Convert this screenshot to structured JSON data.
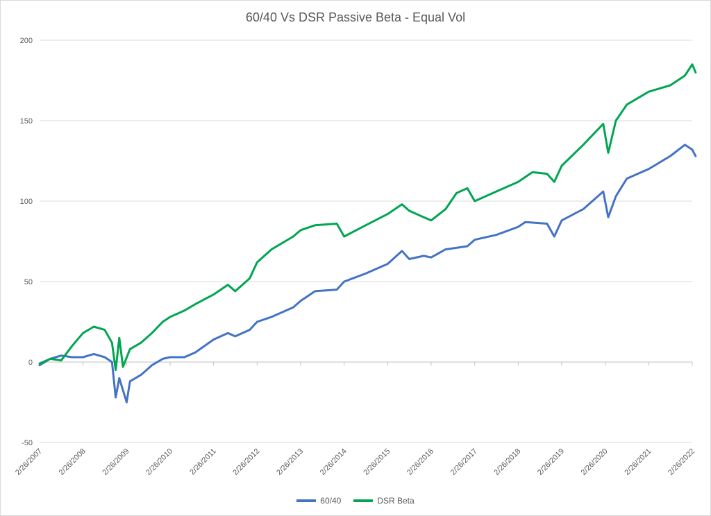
{
  "chart_data": {
    "type": "line",
    "title": "60/40 Vs DSR Passive Beta - Equal Vol",
    "xlabel": "",
    "ylabel": "",
    "ylim": [
      -50,
      200
    ],
    "yticks": [
      -50,
      0,
      50,
      100,
      150,
      200
    ],
    "xlim": [
      "2/26/2007",
      "2/26/2022"
    ],
    "xtick_labels": [
      "2/26/2007",
      "2/26/2008",
      "2/26/2009",
      "2/26/2010",
      "2/26/2011",
      "2/26/2012",
      "2/26/2013",
      "2/26/2014",
      "2/26/2015",
      "2/26/2016",
      "2/26/2017",
      "2/26/2018",
      "2/26/2019",
      "2/26/2020",
      "2/26/2021",
      "2/26/2022"
    ],
    "grid": "horizontal",
    "legend_position": "bottom",
    "series": [
      {
        "name": "60/40",
        "color": "#4472c4",
        "x": [
          "2/26/2007",
          "5/26/2007",
          "8/26/2007",
          "11/26/2007",
          "2/26/2008",
          "5/26/2008",
          "8/26/2008",
          "10/26/2008",
          "11/26/2008",
          "12/26/2008",
          "2/26/2009",
          "3/26/2009",
          "6/26/2009",
          "9/26/2009",
          "12/26/2009",
          "2/26/2010",
          "6/26/2010",
          "9/26/2010",
          "2/26/2011",
          "6/26/2011",
          "8/26/2011",
          "12/26/2011",
          "2/26/2012",
          "6/26/2012",
          "12/26/2012",
          "2/26/2013",
          "6/26/2013",
          "12/26/2013",
          "2/26/2014",
          "8/26/2014",
          "2/26/2015",
          "6/26/2015",
          "8/26/2015",
          "12/26/2015",
          "2/26/2016",
          "6/26/2016",
          "12/26/2016",
          "2/26/2017",
          "8/26/2017",
          "2/26/2018",
          "4/26/2018",
          "10/26/2018",
          "12/26/2018",
          "2/26/2019",
          "8/26/2019",
          "2/10/2020",
          "3/23/2020",
          "5/26/2020",
          "8/26/2020",
          "2/26/2021",
          "8/26/2021",
          "12/26/2021",
          "2/26/2022",
          "3/26/2022"
        ],
        "y": [
          -2,
          2,
          4,
          3,
          3,
          5,
          3,
          0,
          -22,
          -10,
          -25,
          -12,
          -8,
          -2,
          2,
          3,
          3,
          6,
          14,
          18,
          16,
          20,
          25,
          28,
          34,
          38,
          44,
          45,
          50,
          55,
          61,
          69,
          64,
          66,
          65,
          70,
          72,
          76,
          79,
          84,
          87,
          86,
          78,
          88,
          95,
          106,
          90,
          103,
          114,
          120,
          128,
          135,
          132,
          128
        ]
      },
      {
        "name": "DSR Beta",
        "color": "#00a651",
        "x": [
          "2/26/2007",
          "5/26/2007",
          "8/26/2007",
          "11/26/2007",
          "2/26/2008",
          "5/26/2008",
          "8/26/2008",
          "10/26/2008",
          "11/26/2008",
          "12/26/2008",
          "1/26/2009",
          "3/26/2009",
          "6/26/2009",
          "9/26/2009",
          "12/26/2009",
          "2/26/2010",
          "6/26/2010",
          "9/26/2010",
          "2/26/2011",
          "6/26/2011",
          "8/26/2011",
          "12/26/2011",
          "2/26/2012",
          "6/26/2012",
          "12/26/2012",
          "2/26/2013",
          "6/26/2013",
          "12/26/2013",
          "2/26/2014",
          "8/26/2014",
          "2/26/2015",
          "6/26/2015",
          "8/26/2015",
          "12/26/2015",
          "2/26/2016",
          "6/26/2016",
          "9/26/2016",
          "12/26/2016",
          "2/26/2017",
          "8/26/2017",
          "2/26/2018",
          "6/26/2018",
          "10/26/2018",
          "12/26/2018",
          "2/26/2019",
          "8/26/2019",
          "2/10/2020",
          "3/23/2020",
          "5/26/2020",
          "8/26/2020",
          "2/26/2021",
          "8/26/2021",
          "12/26/2021",
          "2/26/2022",
          "3/26/2022"
        ],
        "y": [
          -1,
          2,
          1,
          10,
          18,
          22,
          20,
          12,
          -5,
          15,
          -3,
          8,
          12,
          18,
          25,
          28,
          32,
          36,
          42,
          48,
          44,
          52,
          62,
          70,
          78,
          82,
          85,
          86,
          78,
          85,
          92,
          98,
          94,
          90,
          88,
          95,
          105,
          108,
          100,
          106,
          112,
          118,
          117,
          112,
          122,
          135,
          148,
          130,
          150,
          160,
          168,
          172,
          178,
          185,
          180
        ]
      }
    ]
  }
}
